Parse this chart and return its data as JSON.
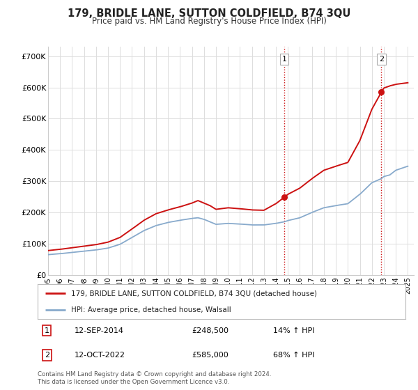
{
  "title": "179, BRIDLE LANE, SUTTON COLDFIELD, B74 3QU",
  "subtitle": "Price paid vs. HM Land Registry's House Price Index (HPI)",
  "ylabel_ticks": [
    "£0",
    "£100K",
    "£200K",
    "£300K",
    "£400K",
    "£500K",
    "£600K",
    "£700K"
  ],
  "ytick_values": [
    0,
    100000,
    200000,
    300000,
    400000,
    500000,
    600000,
    700000
  ],
  "ylim": [
    0,
    730000
  ],
  "xlim_start": 1995.0,
  "xlim_end": 2025.5,
  "hpi_color": "#88aacc",
  "price_color": "#cc1111",
  "marker1_date": 2014.7,
  "marker1_price": 248500,
  "marker2_date": 2022.79,
  "marker2_price": 585000,
  "vline_color": "#cc1111",
  "legend_line1": "179, BRIDLE LANE, SUTTON COLDFIELD, B74 3QU (detached house)",
  "legend_line2": "HPI: Average price, detached house, Walsall",
  "annotation1": [
    "1",
    "12-SEP-2014",
    "£248,500",
    "14% ↑ HPI"
  ],
  "annotation2": [
    "2",
    "12-OCT-2022",
    "£585,000",
    "68% ↑ HPI"
  ],
  "footer": "Contains HM Land Registry data © Crown copyright and database right 2024.\nThis data is licensed under the Open Government Licence v3.0.",
  "background_color": "#ffffff",
  "grid_color": "#dddddd"
}
